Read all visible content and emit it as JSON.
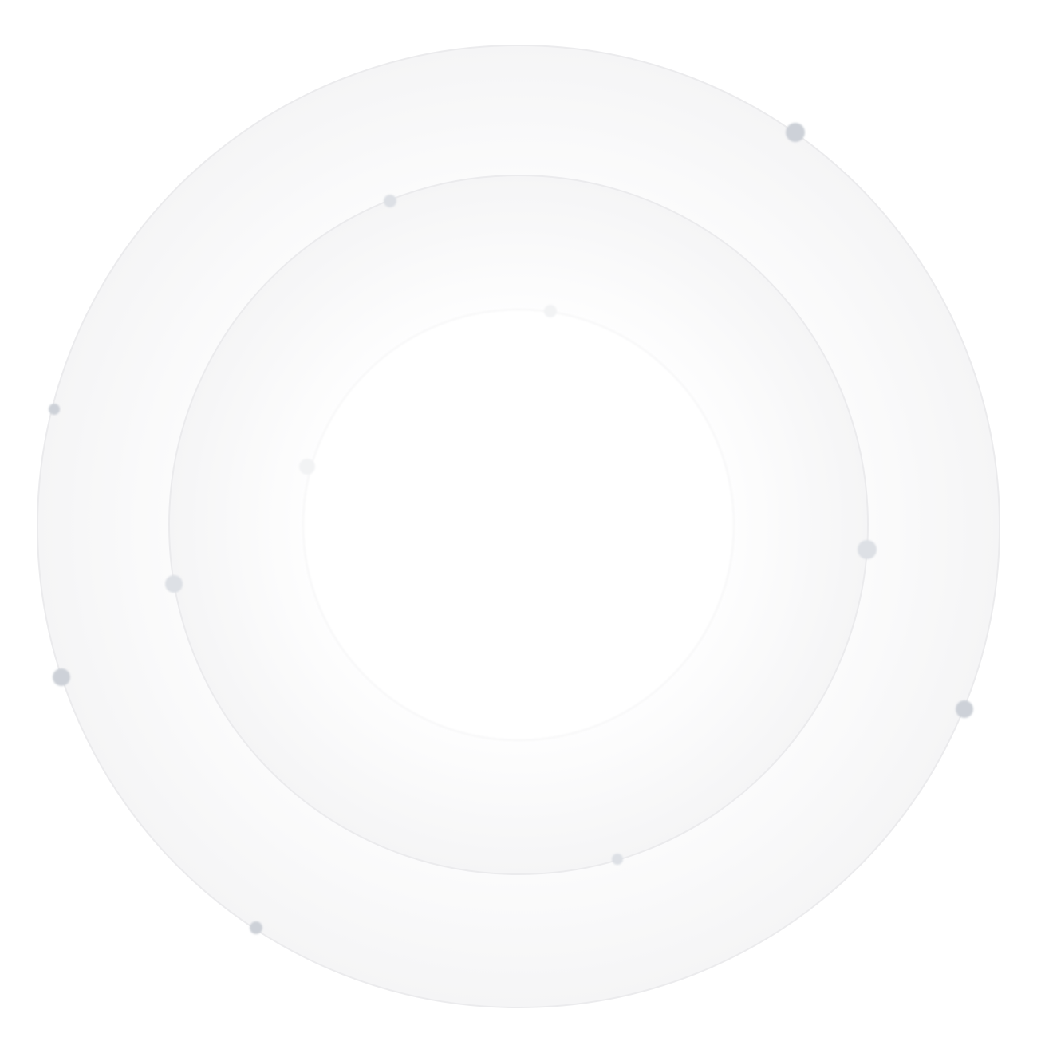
{
  "colors": {
    "background": "#ffffff",
    "ring_stroke": "#ececee",
    "ring_fill_outer": "#f7f7f8",
    "dot_outer": "#cdd1d8",
    "dot_middle": "#dde0e5",
    "dot_inner": "#f2f3f4"
  },
  "rings": [
    {
      "name": "outer-orbit",
      "dot_count": 5
    },
    {
      "name": "middle-orbit",
      "dot_count": 4
    },
    {
      "name": "inner-orbit",
      "dot_count": 2
    }
  ]
}
